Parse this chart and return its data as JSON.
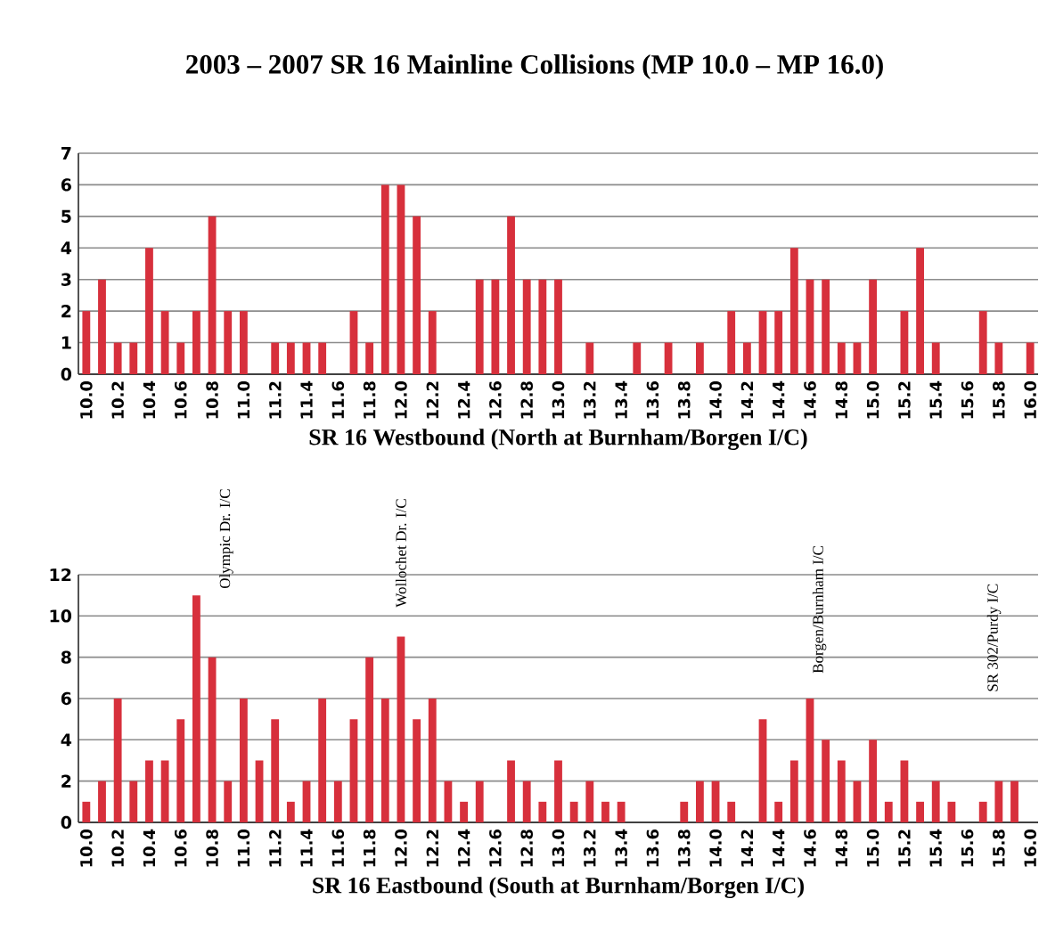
{
  "chart_data": [
    {
      "type": "bar",
      "title": "2003 – 2007  SR 16 Mainline Collisions  (MP 10.0 – MP 16.0)",
      "xlabel": "SR 16 Westbound (North at Burnham/Borgen I/C)",
      "categories": [
        "10.0",
        null,
        "10.2",
        null,
        "10.4",
        null,
        "10.6",
        null,
        "10.8",
        null,
        "11.0",
        null,
        "11.2",
        null,
        "11.4",
        null,
        "11.6",
        null,
        "11.8",
        null,
        "12.0",
        null,
        "12.2",
        null,
        "12.4",
        null,
        "12.6",
        null,
        "12.8",
        null,
        "13.0",
        null,
        "13.2",
        null,
        "13.4",
        null,
        "13.6",
        null,
        "13.8",
        null,
        "14.0",
        null,
        "14.2",
        null,
        "14.4",
        null,
        "14.6",
        null,
        "14.8",
        null,
        "15.0",
        null,
        "15.2",
        null,
        "15.4",
        null,
        "15.6",
        null,
        "15.8",
        null,
        "16.0"
      ],
      "values": [
        2,
        3,
        1,
        1,
        4,
        2,
        1,
        2,
        5,
        2,
        2,
        0,
        1,
        1,
        1,
        1,
        0,
        2,
        1,
        6,
        6,
        5,
        2,
        0,
        0,
        3,
        3,
        5,
        3,
        3,
        3,
        0,
        1,
        0,
        0,
        1,
        0,
        1,
        0,
        1,
        0,
        2,
        1,
        2,
        2,
        4,
        3,
        3,
        1,
        1,
        3,
        0,
        2,
        4,
        1,
        0,
        0,
        2,
        1,
        0,
        1
      ],
      "color": "#d7303c",
      "ylim": [
        0,
        7
      ],
      "yticks": [
        0,
        1,
        2,
        3,
        4,
        5,
        6,
        7
      ],
      "grid": "y"
    },
    {
      "type": "bar",
      "xlabel": "SR 16 Eastbound (South at Burnham/Borgen I/C)",
      "categories": [
        "10.0",
        null,
        "10.2",
        null,
        "10.4",
        null,
        "10.6",
        null,
        "10.8",
        null,
        "11.0",
        null,
        "11.2",
        null,
        "11.4",
        null,
        "11.6",
        null,
        "11.8",
        null,
        "12.0",
        null,
        "12.2",
        null,
        "12.4",
        null,
        "12.6",
        null,
        "12.8",
        null,
        "13.0",
        null,
        "13.2",
        null,
        "13.4",
        null,
        "13.6",
        null,
        "13.8",
        null,
        "14.0",
        null,
        "14.2",
        null,
        "14.4",
        null,
        "14.6",
        null,
        "14.8",
        null,
        "15.0",
        null,
        "15.2",
        null,
        "15.4",
        null,
        "15.6",
        null,
        "15.8",
        null,
        "16.0"
      ],
      "values": [
        1,
        2,
        6,
        2,
        3,
        3,
        5,
        11,
        8,
        2,
        6,
        3,
        5,
        1,
        2,
        6,
        2,
        5,
        8,
        6,
        9,
        5,
        6,
        2,
        1,
        2,
        0,
        3,
        2,
        1,
        3,
        1,
        2,
        1,
        1,
        0,
        0,
        0,
        1,
        2,
        2,
        1,
        0,
        5,
        1,
        3,
        6,
        4,
        3,
        2,
        4,
        1,
        3,
        1,
        2,
        1,
        0,
        1,
        2,
        2,
        0
      ],
      "color": "#d7303c",
      "ylim": [
        0,
        12
      ],
      "yticks": [
        0,
        2,
        4,
        6,
        8,
        10,
        12
      ],
      "grid": "y",
      "annotations": [
        "Olympic Dr. I/C",
        "Wollochet Dr. I/C",
        "Borgen/Burnham I/C",
        "SR 302/Purdy I/C"
      ]
    }
  ]
}
